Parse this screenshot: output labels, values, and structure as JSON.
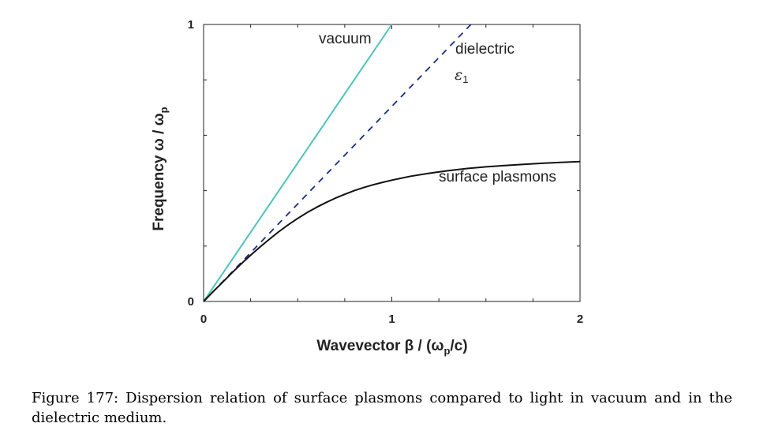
{
  "chart_data": {
    "type": "line",
    "xlabel": "Wavevector β / (ω",
    "xlabel_sub": "p",
    "xlabel_tail": "/c)",
    "ylabel": "Frequency ω / ω",
    "ylabel_sub": "p",
    "xlim": [
      0,
      2
    ],
    "ylim": [
      0,
      1
    ],
    "x_ticks": [
      0,
      1,
      2
    ],
    "y_ticks": [
      0,
      1
    ],
    "grid": false,
    "series": [
      {
        "name": "vacuum",
        "color": "#4cc4b8",
        "style": "solid",
        "x": [
          0,
          1.0
        ],
        "y": [
          0,
          1.0
        ]
      },
      {
        "name": "dielectric",
        "color": "#1a2e80",
        "style": "dashed",
        "x": [
          0,
          1.42
        ],
        "y": [
          0,
          1.0
        ]
      },
      {
        "name": "surface plasmons",
        "color": "#111111",
        "style": "solid",
        "x": [
          0,
          0.05,
          0.1,
          0.15,
          0.2,
          0.25,
          0.3,
          0.35,
          0.4,
          0.45,
          0.5,
          0.55,
          0.6,
          0.65,
          0.7,
          0.75,
          0.8,
          0.85,
          0.9,
          0.95,
          1.0,
          1.1,
          1.2,
          1.3,
          1.4,
          1.5,
          1.6,
          1.7,
          1.8,
          1.9,
          2.0
        ],
        "y": [
          0,
          0.035,
          0.069,
          0.103,
          0.136,
          0.167,
          0.197,
          0.225,
          0.252,
          0.277,
          0.3,
          0.321,
          0.34,
          0.357,
          0.373,
          0.387,
          0.4,
          0.411,
          0.421,
          0.43,
          0.438,
          0.452,
          0.463,
          0.472,
          0.48,
          0.486,
          0.491,
          0.495,
          0.499,
          0.502,
          0.505
        ]
      }
    ],
    "annotations": {
      "vacuum": "vacuum",
      "dielectric": "dielectric",
      "eps_symbol": "ε",
      "eps_sub": "1",
      "surface_plasmons": "surface plasmons"
    }
  },
  "caption": "Figure 177: Dispersion relation of surface plasmons compared to light in vacuum and in the dielectric medium."
}
